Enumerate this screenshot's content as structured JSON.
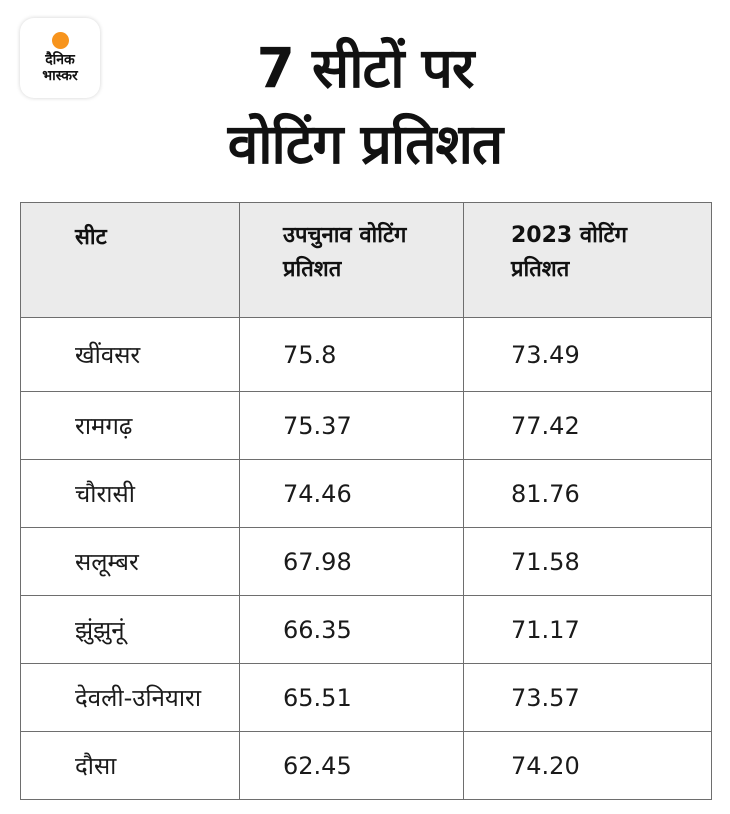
{
  "logo": {
    "line1": "दैनिक",
    "line2": "भास्कर",
    "accent_color": "#f7941d"
  },
  "title": {
    "line1": "7 सीटों पर",
    "line2": "वोटिंग प्रतिशत"
  },
  "chart_data": {
    "type": "table",
    "columns": [
      "सीट",
      "उपचुनाव वोटिंग प्रतिशत",
      "2023 वोटिंग प्रतिशत"
    ],
    "column_lines": [
      [
        "सीट"
      ],
      [
        "उपचुनाव वोटिंग",
        "प्रतिशत"
      ],
      [
        "2023 वोटिंग",
        "प्रतिशत"
      ]
    ],
    "rows": [
      [
        "खींवसर",
        "75.8",
        "73.49"
      ],
      [
        "रामगढ़",
        "75.37",
        "77.42"
      ],
      [
        "चौरासी",
        "74.46",
        "81.76"
      ],
      [
        "सलूम्बर",
        "67.98",
        "71.58"
      ],
      [
        "झुंझुनूं",
        "66.35",
        "71.17"
      ],
      [
        "देवली-उनियारा",
        "65.51",
        "73.57"
      ],
      [
        "दौसा",
        "62.45",
        "74.20"
      ]
    ]
  }
}
